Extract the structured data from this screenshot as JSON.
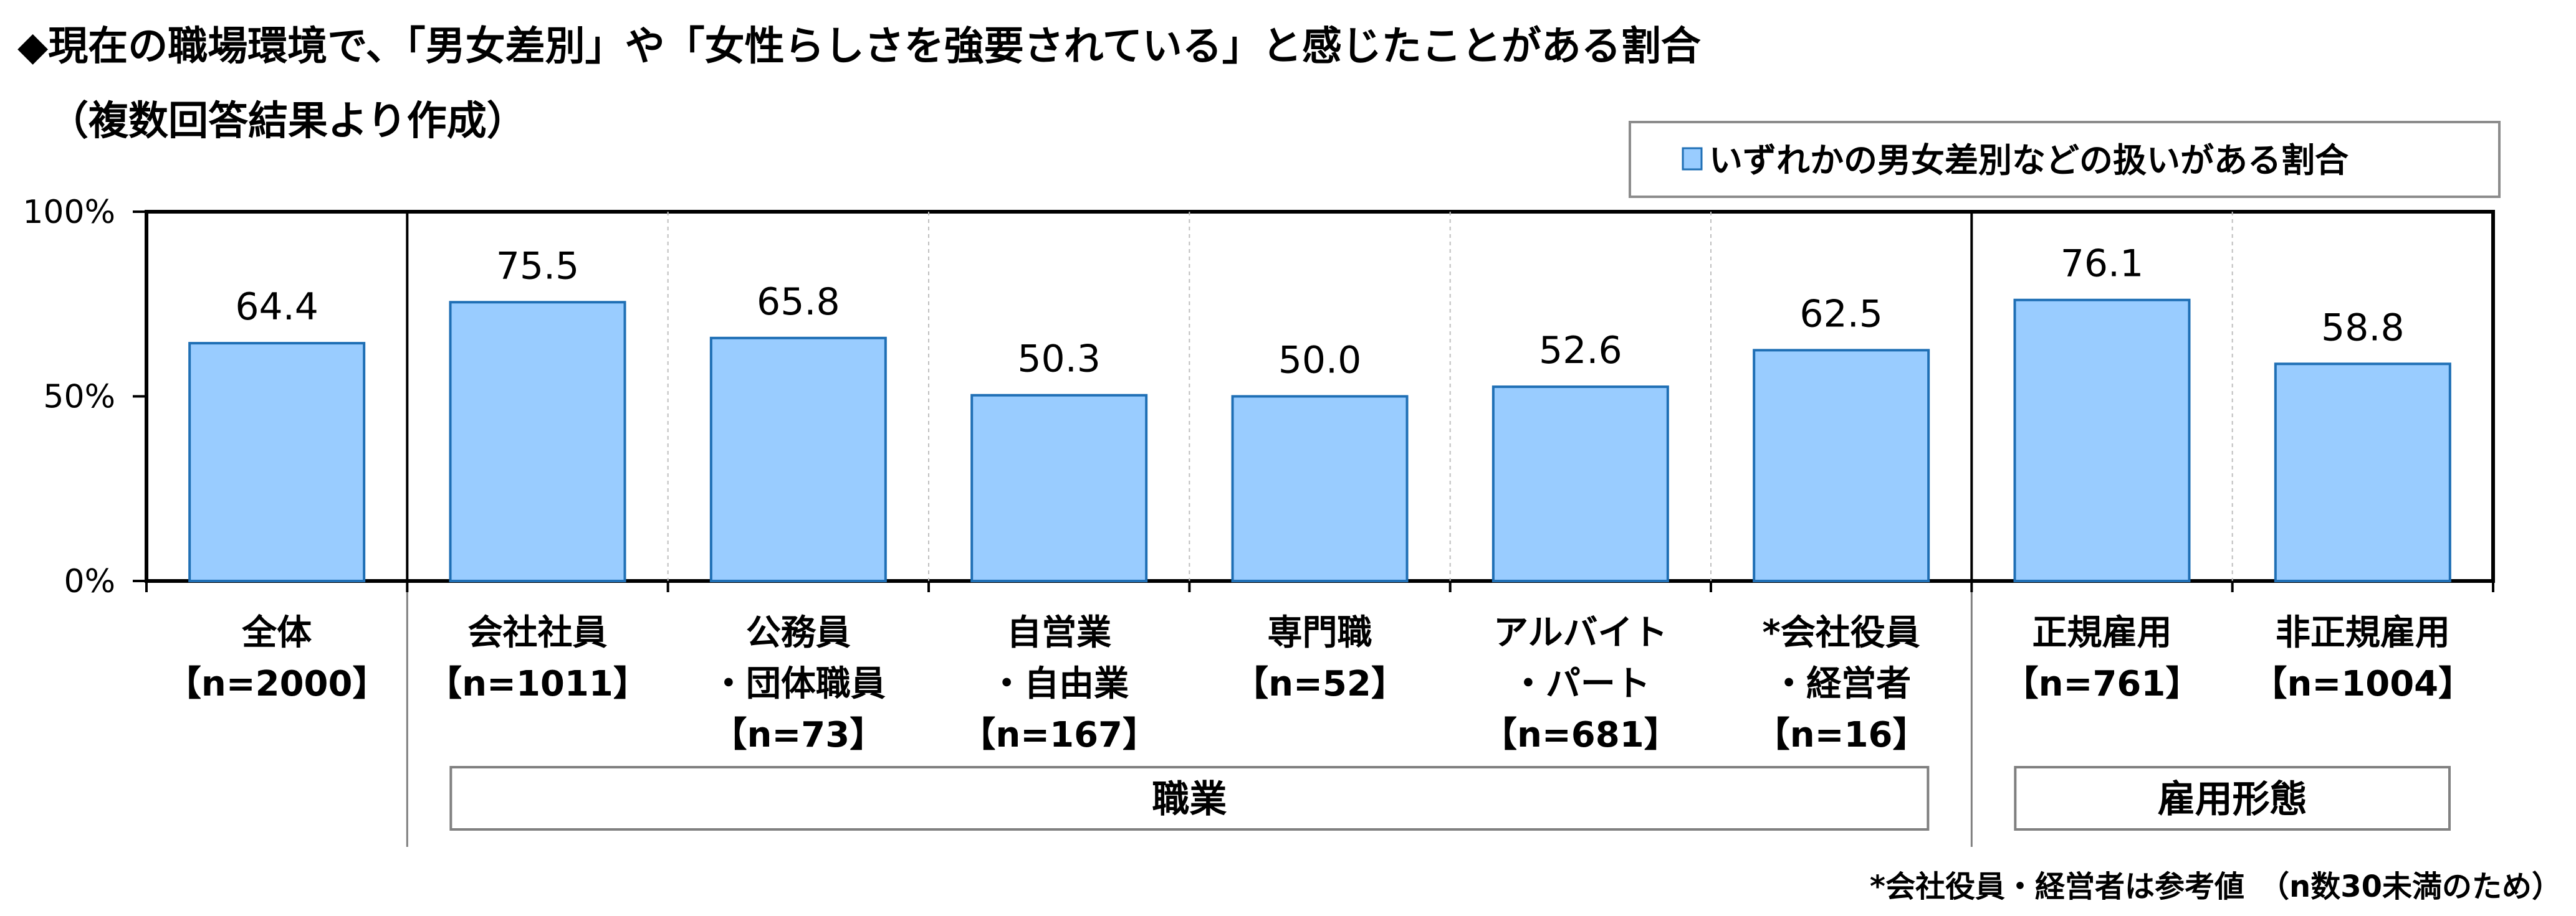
{
  "title_line1": "◆現在の職場環境で、「男女差別」や「女性らしさを強要されている」と感じたことがある割合",
  "title_line2": "（複数回答結果より作成）",
  "legend": {
    "label": "いずれかの男女差別などの扱いがある割合",
    "color": "#99ccff"
  },
  "footnote": "*会社役員・経営者は参考値　（n数30未満のため）",
  "groups": [
    {
      "label": "職業",
      "from": 1,
      "to": 6
    },
    {
      "label": "雇用形態",
      "from": 7,
      "to": 8
    }
  ],
  "chart_data": {
    "type": "bar",
    "categories": [
      {
        "lines": [
          "全体",
          "【n=2000】"
        ]
      },
      {
        "lines": [
          "会社社員",
          "【n=1011】"
        ]
      },
      {
        "lines": [
          "公務員",
          "・団体職員",
          "【n=73】"
        ]
      },
      {
        "lines": [
          "自営業",
          "・自由業",
          "【n=167】"
        ]
      },
      {
        "lines": [
          "専門職",
          "【n=52】"
        ]
      },
      {
        "lines": [
          "アルバイト",
          "・パート",
          "【n=681】"
        ]
      },
      {
        "lines": [
          "*会社役員",
          "・経営者",
          "【n=16】"
        ]
      },
      {
        "lines": [
          "正規雇用",
          "【n=761】"
        ]
      },
      {
        "lines": [
          "非正規雇用",
          "【n=1004】"
        ]
      }
    ],
    "series": [
      {
        "name": "いずれかの男女差別などの扱いがある割合",
        "values": [
          64.4,
          75.5,
          65.8,
          50.3,
          50.0,
          52.6,
          62.5,
          76.1,
          58.8
        ],
        "labels": [
          "64.4",
          "75.5",
          "65.8",
          "50.3",
          "50.0",
          "52.6",
          "62.5",
          "76.1",
          "58.8"
        ]
      }
    ],
    "ylim": [
      0,
      100
    ],
    "yticks": [
      "0%",
      "50%",
      "100%"
    ],
    "ytick_values": [
      0,
      50,
      100
    ],
    "bar_color": "#99ccff",
    "bar_border": "#1f6fb5"
  }
}
